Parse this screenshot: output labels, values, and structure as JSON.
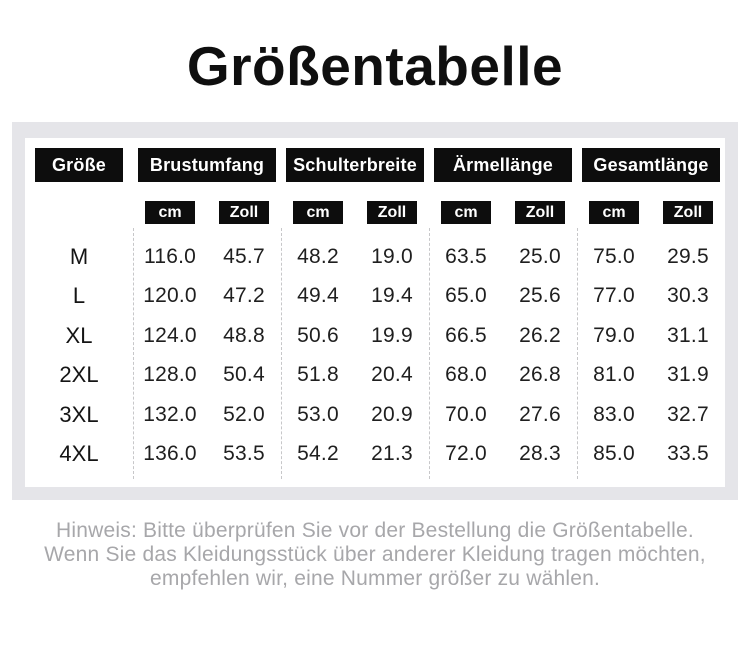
{
  "header": {
    "title": "Größentabelle"
  },
  "chart_data": {
    "type": "table",
    "title": "Größentabelle",
    "size_column_header": "Größe",
    "measure_groups": [
      "Brustumfang",
      "Schulterbreite",
      "Ärmellänge",
      "Gesamtlänge"
    ],
    "unit_labels": [
      "cm",
      "Zoll"
    ],
    "rows": [
      {
        "size": "M",
        "values": [
          "116.0",
          "45.7",
          "48.2",
          "19.0",
          "63.5",
          "25.0",
          "75.0",
          "29.5"
        ]
      },
      {
        "size": "L",
        "values": [
          "120.0",
          "47.2",
          "49.4",
          "19.4",
          "65.0",
          "25.6",
          "77.0",
          "30.3"
        ]
      },
      {
        "size": "XL",
        "values": [
          "124.0",
          "48.8",
          "50.6",
          "19.9",
          "66.5",
          "26.2",
          "79.0",
          "31.1"
        ]
      },
      {
        "size": "2XL",
        "values": [
          "128.0",
          "50.4",
          "51.8",
          "20.4",
          "68.0",
          "26.8",
          "81.0",
          "31.9"
        ]
      },
      {
        "size": "3XL",
        "values": [
          "132.0",
          "52.0",
          "53.0",
          "20.9",
          "70.0",
          "27.6",
          "83.0",
          "32.7"
        ]
      },
      {
        "size": "4XL",
        "values": [
          "136.0",
          "53.5",
          "54.2",
          "21.3",
          "72.0",
          "28.3",
          "85.0",
          "33.5"
        ]
      }
    ],
    "note_lines": [
      "Hinweis: Bitte überprüfen Sie vor der Bestellung die Größentabelle.",
      "Wenn Sie das Kleidungsstück über anderer Kleidung tragen möchten,",
      "empfehlen wir, eine Nummer größer zu wählen."
    ],
    "layout_hints": {
      "grid": "off",
      "dividers": "dashed-vertical-between-groups"
    }
  },
  "colors": {
    "pill_bg": "#0d0d0d",
    "panel_bg": "#e5e5e9",
    "divider": "#c7c7c9",
    "note_text": "#a7a7aa"
  }
}
